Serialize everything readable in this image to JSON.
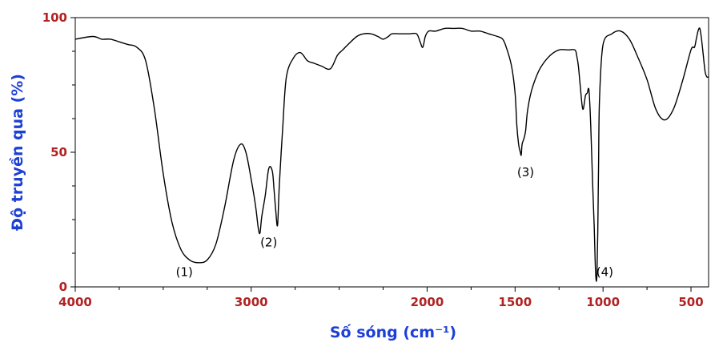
{
  "chart_data": {
    "type": "line",
    "title": "",
    "xlabel": "Số sóng (cm⁻¹)",
    "ylabel": "Độ truyền qua (%)",
    "xlim": [
      4000,
      400
    ],
    "ylim": [
      0,
      100
    ],
    "x_reversed": true,
    "xticks": [
      4000,
      3000,
      2000,
      1500,
      1000,
      500
    ],
    "xtick_labels": [
      "4000",
      "3000",
      "2000",
      "1500",
      "1000",
      "500"
    ],
    "yticks": [
      0,
      50,
      100
    ],
    "ytick_labels": [
      "0",
      "50",
      "100"
    ],
    "grid": false,
    "legend": "none",
    "colors": {
      "axis_labels": "#b22222",
      "axis_titles": "#1c3fd6",
      "line": "#000000"
    },
    "series": [
      {
        "x": [
          4000,
          3900,
          3850,
          3800,
          3750,
          3700,
          3650,
          3600,
          3550,
          3500,
          3450,
          3400,
          3350,
          3300,
          3250,
          3200,
          3150,
          3100,
          3060,
          3030,
          3000,
          2975,
          2960,
          2950,
          2940,
          2920,
          2900,
          2880,
          2870,
          2860,
          2850,
          2840,
          2820,
          2800,
          2760,
          2720,
          2680,
          2640,
          2600,
          2550,
          2510,
          2480,
          2450,
          2400,
          2360,
          2320,
          2280,
          2250,
          2220,
          2200,
          2150,
          2100,
          2060,
          2040,
          2025,
          2010,
          1990,
          1950,
          1900,
          1850,
          1800,
          1750,
          1700,
          1650,
          1600,
          1570,
          1550,
          1520,
          1500,
          1490,
          1480,
          1470,
          1465,
          1460,
          1450,
          1440,
          1430,
          1410,
          1380,
          1350,
          1300,
          1250,
          1200,
          1160,
          1150,
          1140,
          1130,
          1115,
          1100,
          1090,
          1080,
          1070,
          1060,
          1050,
          1045,
          1040,
          1035,
          1030,
          1025,
          1020,
          1000,
          950,
          900,
          850,
          800,
          750,
          700,
          650,
          600,
          550,
          500,
          480,
          470,
          460,
          450,
          440,
          430,
          420,
          410,
          400
        ],
        "y": [
          92,
          93,
          92,
          92,
          91,
          90,
          89,
          84,
          66,
          42,
          24,
          14,
          10,
          9,
          10,
          16,
          30,
          47,
          53,
          50,
          40,
          30,
          22,
          20,
          26,
          34,
          44,
          43,
          36,
          28,
          23,
          38,
          60,
          78,
          85,
          87,
          84,
          83,
          82,
          81,
          86,
          88,
          90,
          93,
          94,
          94,
          93,
          92,
          93,
          94,
          94,
          94,
          94,
          91,
          89,
          93,
          95,
          95,
          96,
          96,
          96,
          95,
          95,
          94,
          93,
          92,
          89,
          82,
          72,
          60,
          53,
          50,
          49,
          53,
          55,
          58,
          65,
          72,
          78,
          82,
          86,
          88,
          88,
          88,
          86,
          82,
          75,
          66,
          71,
          72,
          73,
          60,
          40,
          22,
          10,
          3,
          4,
          20,
          48,
          70,
          90,
          94,
          95,
          92,
          85,
          77,
          66,
          62,
          66,
          76,
          88,
          89,
          92,
          95,
          96,
          92,
          86,
          80,
          78,
          78
        ]
      }
    ],
    "annotations": [
      {
        "label": "(1)",
        "x": 3380,
        "y": 4
      },
      {
        "label": "(2)",
        "x": 2900,
        "y": 15
      },
      {
        "label": "(3)",
        "x": 1440,
        "y": 41
      },
      {
        "label": "(4)",
        "x": 990,
        "y": 4
      }
    ]
  }
}
